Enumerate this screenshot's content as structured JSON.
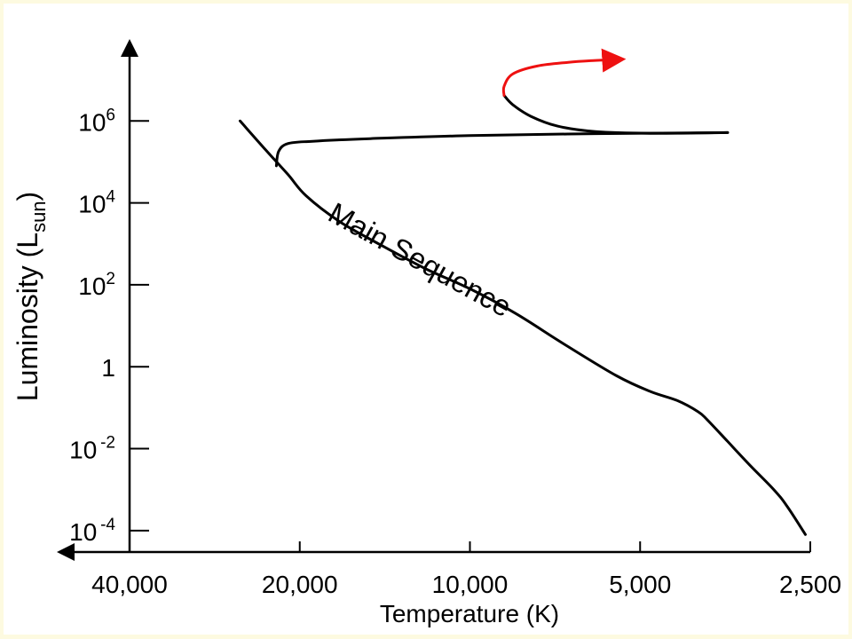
{
  "chart_data": {
    "type": "line",
    "title": "",
    "xlabel": "Temperature (K)",
    "ylabel": {
      "main": "Luminosity (L",
      "subscript": "sun",
      "close": ")"
    },
    "x_scale": "log",
    "x_direction": "decreasing-left-to-right",
    "xlim": [
      40000,
      2500
    ],
    "y_scale": "log",
    "ylim": [
      3e-05,
      100000000
    ],
    "x_ticks": [
      {
        "value": 40000,
        "label": "40,000"
      },
      {
        "value": 20000,
        "label": "20,000"
      },
      {
        "value": 10000,
        "label": "10,000"
      },
      {
        "value": 5000,
        "label": "5,000"
      },
      {
        "value": 2500,
        "label": "2,500"
      }
    ],
    "y_ticks": [
      {
        "value": 1000000,
        "base": "10",
        "exp": "6"
      },
      {
        "value": 10000,
        "base": "10",
        "exp": "4"
      },
      {
        "value": 100,
        "base": "10",
        "exp": "2"
      },
      {
        "value": 1,
        "base": "1",
        "exp": ""
      },
      {
        "value": 0.01,
        "base": "10",
        "exp": "-2"
      },
      {
        "value": 0.0001,
        "base": "10",
        "exp": "-4"
      }
    ],
    "grid": false,
    "legend": "none",
    "annotations": [
      {
        "text": "Main Sequence",
        "x": 12500,
        "y": 250,
        "angle_deg": 29
      }
    ],
    "series": [
      {
        "role": "main-sequence",
        "color": "#000000",
        "x": [
          25500,
          23000,
          21000,
          19500,
          17000,
          14500,
          12000,
          10000,
          8300,
          6800,
          5500,
          4800,
          4300,
          3950,
          3800,
          3500,
          3200,
          2900,
          2750,
          2550
        ],
        "y": [
          1000000,
          200000,
          50000,
          15000,
          3500,
          1000,
          250,
          80,
          20,
          3.5,
          0.6,
          0.25,
          0.15,
          0.08,
          0.05,
          0.015,
          0.004,
          0.001,
          0.0004,
          8e-05
        ]
      },
      {
        "role": "massive-star-track-horizontal",
        "color": "#000000",
        "x": [
          22000,
          21800,
          21000,
          19000,
          15000,
          10000,
          6000,
          3500
        ],
        "y": [
          80000,
          180000,
          280000,
          320000,
          370000,
          440000,
          490000,
          520000
        ]
      },
      {
        "role": "massive-star-track-return",
        "color": "#000000",
        "x": [
          3500,
          4800,
          6000,
          7000,
          7800,
          8400,
          8700
        ],
        "y": [
          520000,
          500000,
          550000,
          750000,
          1300000,
          2500000,
          4200000
        ]
      },
      {
        "role": "massive-star-track-continuation",
        "color": "#ee1111",
        "x": [
          8700,
          8700,
          8400,
          7600,
          6700,
          6000,
          5400
        ],
        "y": [
          4200000,
          7000000,
          14000000,
          22000000,
          27000000,
          30000000,
          32000000
        ]
      }
    ]
  }
}
